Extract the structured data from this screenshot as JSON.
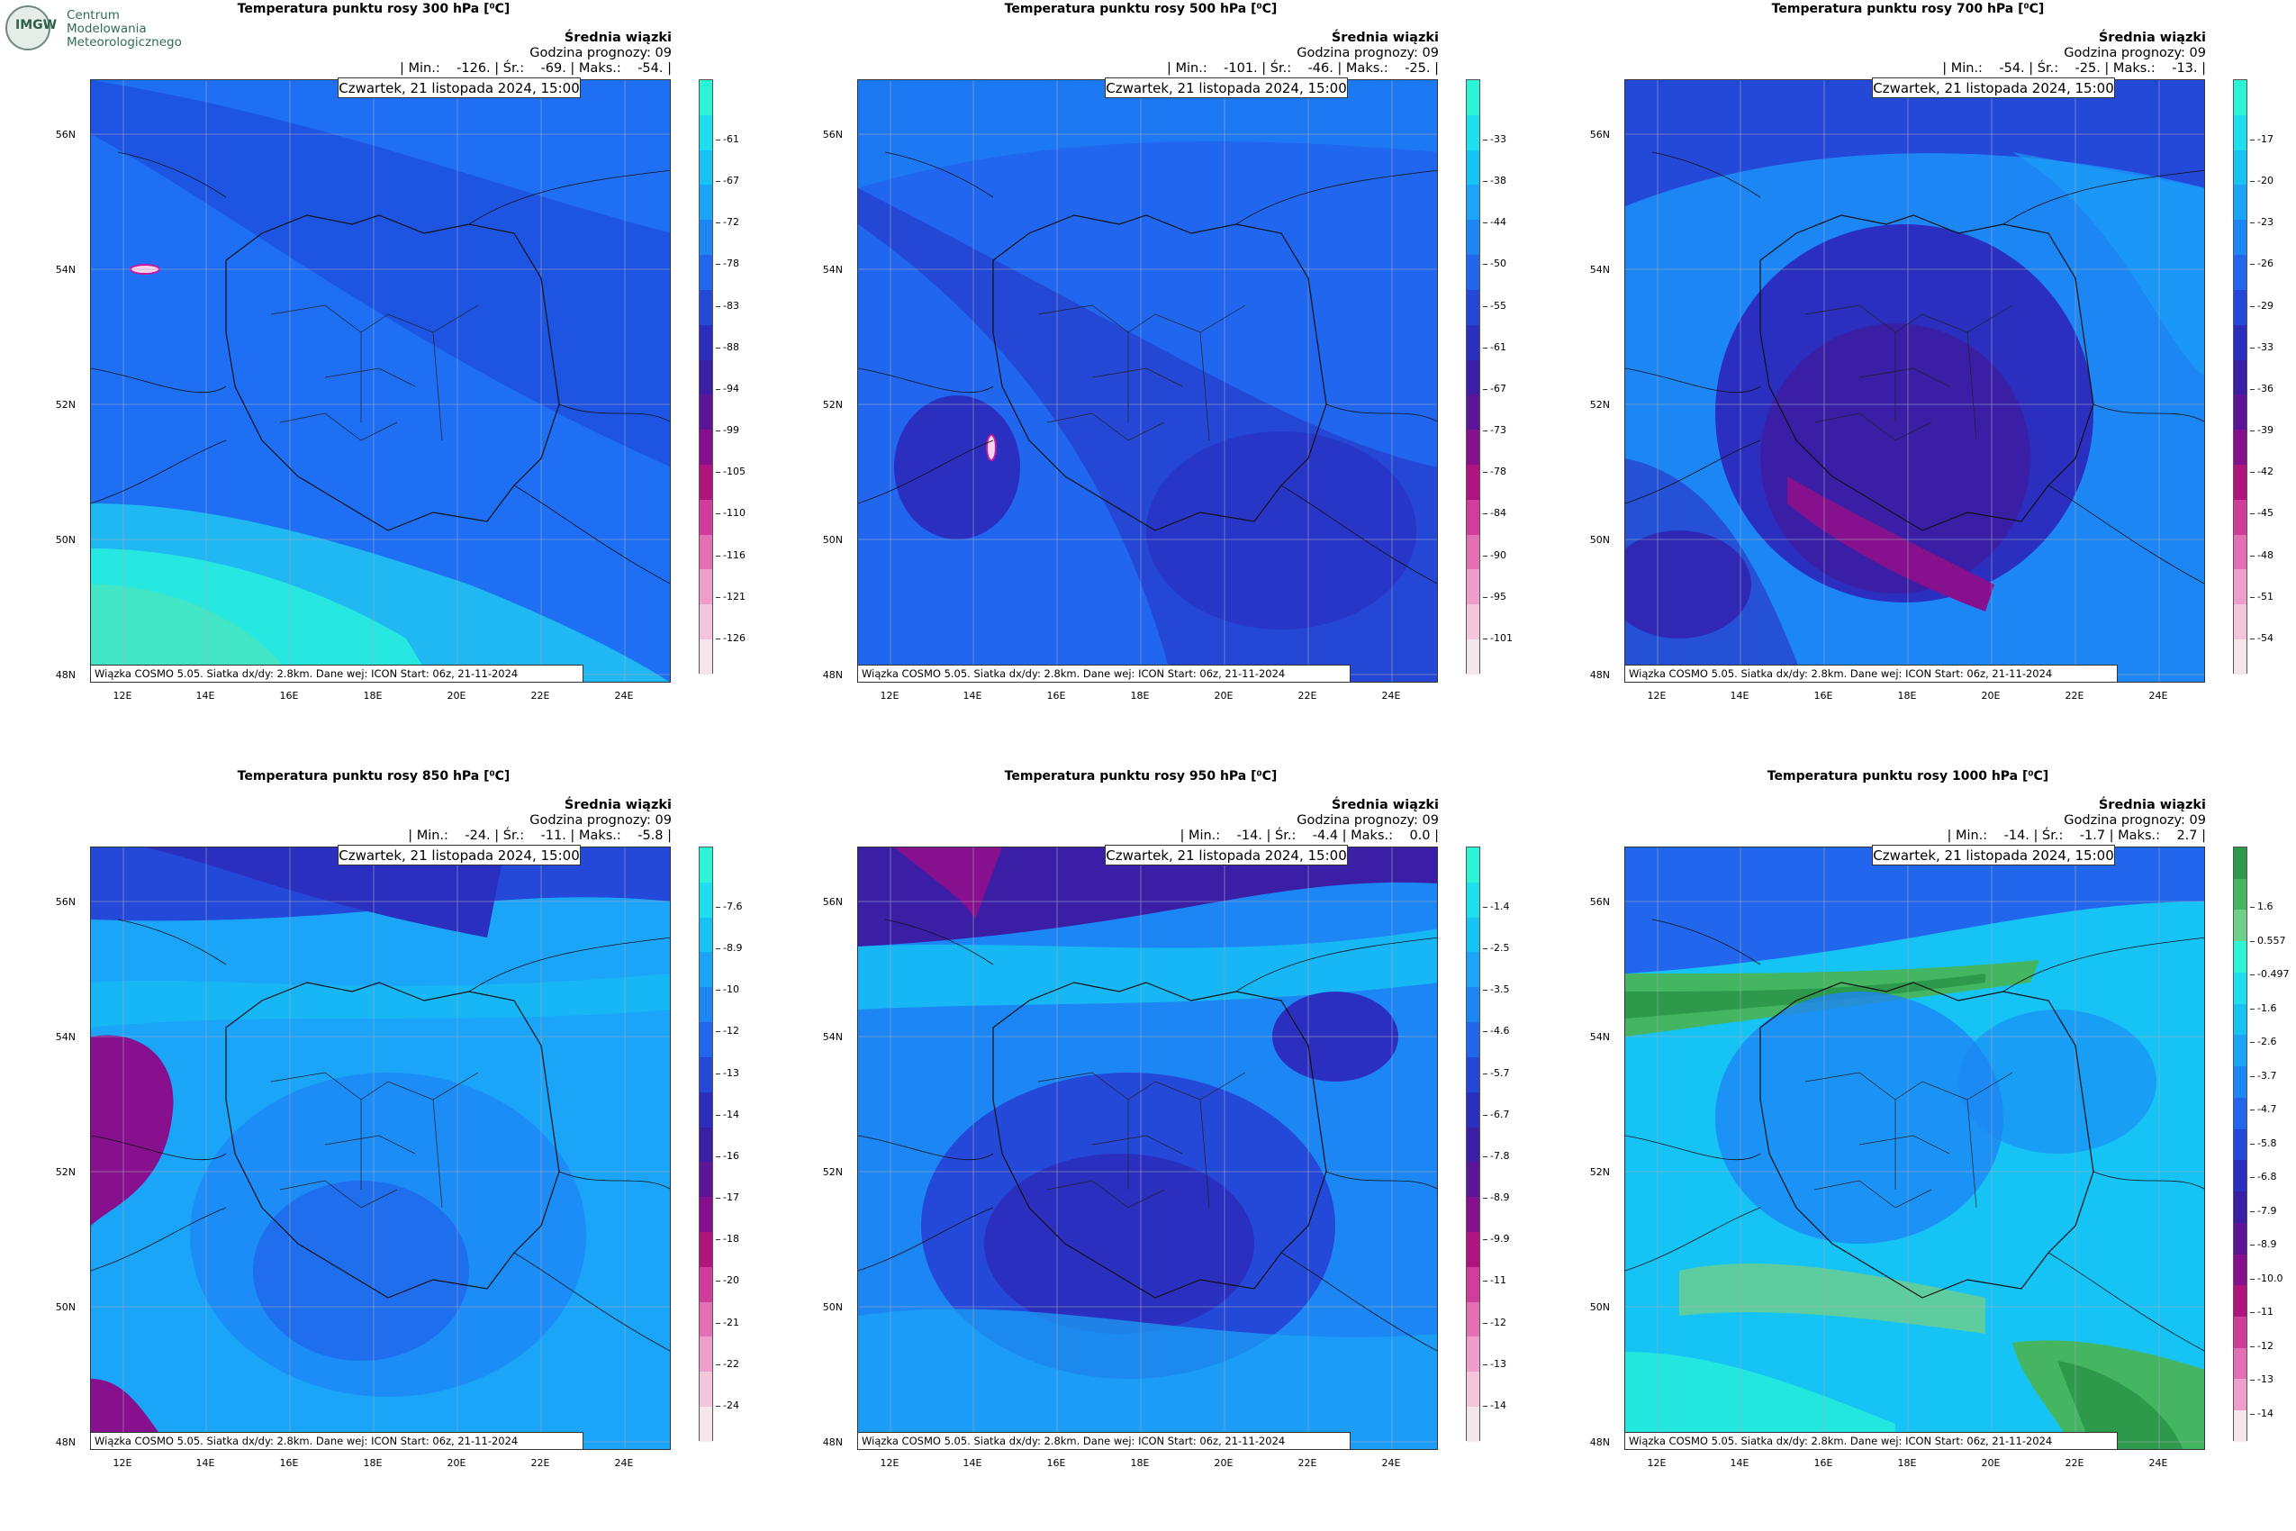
{
  "logo": {
    "lines": [
      "Centrum",
      "Modelowania",
      "Meteorologicznego"
    ],
    "badge": "IMGW"
  },
  "common": {
    "subtitle": "Średnia wiązki",
    "forecast_hour": "Godzina prognozy: 09",
    "date": "Czwartek, 21 listopada 2024, 15:00",
    "footer": "Wiązka COSMO 5.05. Siatka dx/dy: 2.8km. Dane wej: ICON Start: 06z, 21-11-2024",
    "lat_labels": [
      "56N",
      "54N",
      "52N",
      "50N",
      "48N"
    ],
    "lon_labels": [
      "12E",
      "14E",
      "16E",
      "18E",
      "20E",
      "22E",
      "24E"
    ]
  },
  "panels": [
    {
      "title": "Temperatura punktu rosy 300 hPa [⁰C]",
      "stats": "| Min.:    -126. | Śr.:    -69. | Maks.:    -54. |",
      "ticks": [
        "-61",
        "-67",
        "-72",
        "-78",
        "-83",
        "-88",
        "-94",
        "-99",
        "-105",
        "-110",
        "-116",
        "-121",
        "-126"
      ]
    },
    {
      "title": "Temperatura punktu rosy 500 hPa [⁰C]",
      "stats": "| Min.:    -101. | Śr.:    -46. | Maks.:    -25. |",
      "ticks": [
        "-33",
        "-38",
        "-44",
        "-50",
        "-55",
        "-61",
        "-67",
        "-73",
        "-78",
        "-84",
        "-90",
        "-95",
        "-101"
      ]
    },
    {
      "title": "Temperatura punktu rosy 700 hPa [⁰C]",
      "stats": "| Min.:    -54. | Śr.:    -25. | Maks.:    -13. |",
      "ticks": [
        "-17",
        "-20",
        "-23",
        "-26",
        "-29",
        "-33",
        "-36",
        "-39",
        "-42",
        "-45",
        "-48",
        "-51",
        "-54"
      ]
    },
    {
      "title": "Temperatura punktu rosy 850 hPa [⁰C]",
      "stats": "| Min.:    -24. | Śr.:    -11. | Maks.:    -5.8 |",
      "ticks": [
        "-7.6",
        "-8.9",
        "-10",
        "-12",
        "-13",
        "-14",
        "-16",
        "-17",
        "-18",
        "-20",
        "-21",
        "-22",
        "-24"
      ]
    },
    {
      "title": "Temperatura punktu rosy 950 hPa [⁰C]",
      "stats": "| Min.:    -14. | Śr.:    -4.4 | Maks.:    0.0 |",
      "ticks": [
        "-1.4",
        "-2.5",
        "-3.5",
        "-4.6",
        "-5.7",
        "-6.7",
        "-7.8",
        "-8.9",
        "-9.9",
        "-11",
        "-12",
        "-13",
        "-14"
      ]
    },
    {
      "title": "Temperatura punktu rosy 1000 hPa [⁰C]",
      "stats": "| Min.:    -14. | Śr.:    -1.7 | Maks.:    2.7 |",
      "ticks": [
        "1.6",
        "0.557",
        "-0.497",
        "-1.6",
        "-2.6",
        "-3.7",
        "-4.7",
        "-5.8",
        "-6.8",
        "-7.9",
        "-8.9",
        "-10.0",
        "-11",
        "-12",
        "-13",
        "-14"
      ]
    }
  ],
  "colors": {
    "cold_scale": [
      "#2af5d6",
      "#1ddff0",
      "#16c3f5",
      "#1aa5f8",
      "#1d86f5",
      "#2166ec",
      "#2448d8",
      "#2a2fc0",
      "#3a1fa6",
      "#5c1598",
      "#86108e",
      "#b0157f",
      "#d03d9a",
      "#e46fb4",
      "#ef9dcb",
      "#f4c6dd",
      "#f5e6ec"
    ],
    "warm_scale": [
      "#2c9a4a",
      "#44b561",
      "#6fd08a",
      "#2af5d6",
      "#1ddff0",
      "#16c3f5",
      "#1aa5f8",
      "#1d86f5",
      "#2166ec",
      "#2448d8",
      "#2a2fc0",
      "#3a1fa6",
      "#5c1598",
      "#86108e",
      "#b0157f",
      "#d03d9a",
      "#e46fb4",
      "#ef9dcb",
      "#f5e6ec"
    ]
  }
}
